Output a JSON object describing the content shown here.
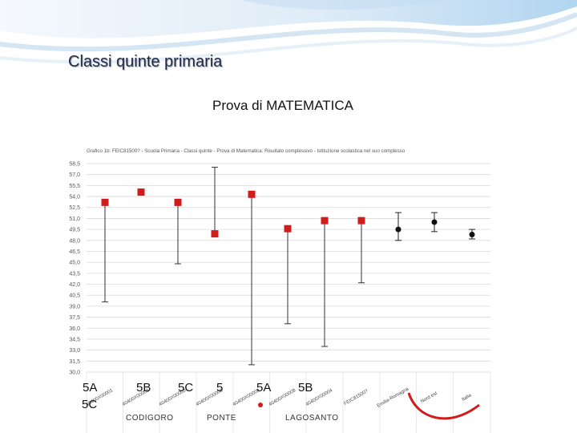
{
  "slide": {
    "title": "Classi quinte primaria",
    "subtitle": "Prova di MATEMATICA"
  },
  "chart_data": {
    "type": "scatter",
    "title": "Grafico 1b: FEIC81500? - Scuola Primaria - Classi quinte - Prova di Matematica: Risultato complessivo - Istituzione scolastica nel suo complesso",
    "y_tick_labels": [
      "30,0",
      "31,5",
      "33,0",
      "34,5",
      "36,0",
      "37,5",
      "39,0",
      "40,5",
      "42,0",
      "43,5",
      "45,0",
      "46,5",
      "48,0",
      "49,5",
      "51,0",
      "52,5",
      "54,0",
      "55,5",
      "57,0",
      "58,5"
    ],
    "ylim": [
      30,
      58.5
    ],
    "grid": true,
    "categories": [
      "40400X00001",
      "40400X00002",
      "40400X00003",
      "40400X00006",
      "40400X00009",
      "40400X00008",
      "40400X00004",
      "FEIC81500?",
      "Emilia-Romagna",
      "Nord est",
      "Italia"
    ],
    "series": [
      {
        "marker": "square",
        "color": "#d21c1c",
        "values": [
          53.2,
          54.6,
          53.2,
          48.9,
          54.3,
          49.6,
          50.7,
          50.7
        ],
        "whisker_low": [
          39.6,
          null,
          44.8,
          null,
          31.0,
          36.6,
          33.5,
          42.2
        ],
        "whisker_high": [
          null,
          null,
          null,
          58.0,
          null,
          null,
          null,
          null
        ]
      },
      {
        "marker": "circle",
        "color": "#111111",
        "values": [
          49.5,
          50.5,
          48.8
        ],
        "whisker_low": [
          48.0,
          49.2,
          48.2
        ],
        "whisker_high": [
          51.8,
          51.8,
          49.5
        ]
      }
    ],
    "group_labels": [
      "5A",
      "5B",
      "5C",
      "5",
      "5A",
      "5B",
      "5C"
    ],
    "school_labels": [
      "CODIGORO",
      "PONTE",
      "LAGOSANTO"
    ]
  }
}
